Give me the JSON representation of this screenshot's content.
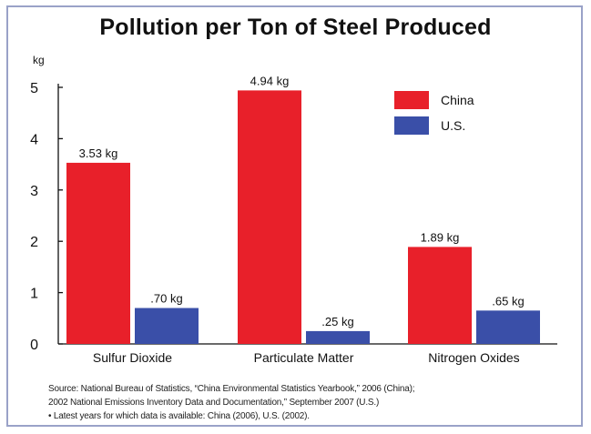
{
  "chart_data": {
    "type": "bar",
    "title": "Pollution per Ton of Steel Produced",
    "ylabel": "kg",
    "xlabel": "",
    "ylim": [
      0,
      5
    ],
    "yticks": [
      "0",
      "1",
      "2",
      "3",
      "4",
      "5"
    ],
    "categories": [
      "Sulfur Dioxide",
      "Particulate Matter",
      "Nitrogen Oxides"
    ],
    "series": [
      {
        "name": "China",
        "color": "#e8202a",
        "values": [
          3.53,
          4.94,
          1.89
        ],
        "labels": [
          "3.53 kg",
          "4.94 kg",
          "1.89 kg"
        ]
      },
      {
        "name": "U.S.",
        "color": "#3a4fa8",
        "values": [
          0.7,
          0.25,
          0.65
        ],
        "labels": [
          ".70 kg",
          ".25 kg",
          ".65 kg"
        ]
      }
    ],
    "legend": "top-right",
    "grid": false
  },
  "source": {
    "line1": "Source: National Bureau of Statistics, “China Environmental Statistics Yearbook,” 2006 (China);",
    "line2": "2002 National Emissions Inventory Data and Documentation,” September 2007 (U.S.)",
    "line3": "• Latest years for which data is available: China (2006), U.S. (2002)."
  }
}
